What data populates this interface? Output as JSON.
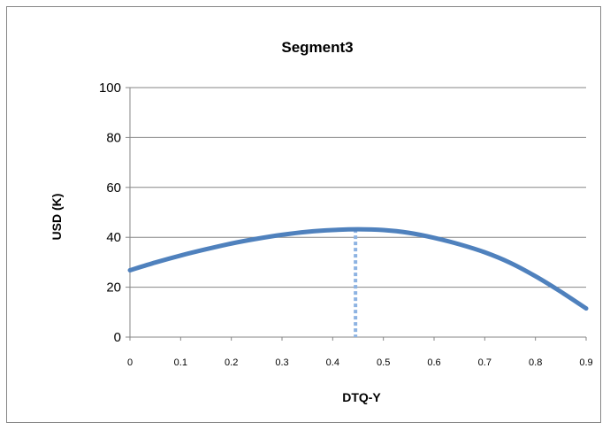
{
  "chart_data": {
    "type": "line",
    "title": "Segment3",
    "xlabel": "DTQ-Y",
    "ylabel": "USD (K)",
    "xlim": [
      0,
      0.9
    ],
    "ylim": [
      0,
      100
    ],
    "x_ticks": [
      "0",
      "0.1",
      "0.2",
      "0.3",
      "0.4",
      "0.5",
      "0.6",
      "0.7",
      "0.8",
      "0.9"
    ],
    "y_ticks": [
      "0",
      "20",
      "40",
      "60",
      "80",
      "100"
    ],
    "grid": true,
    "legend": false,
    "series": [
      {
        "color": "#4f81bd",
        "x": [
          0,
          0.05,
          0.1,
          0.15,
          0.2,
          0.25,
          0.3,
          0.35,
          0.4,
          0.45,
          0.5,
          0.55,
          0.6,
          0.65,
          0.7,
          0.75,
          0.8,
          0.85,
          0.9
        ],
        "y": [
          26.8,
          29.9,
          32.7,
          35.2,
          37.5,
          39.4,
          41.0,
          42.2,
          42.9,
          43.2,
          42.9,
          41.8,
          39.8,
          37.2,
          34.0,
          29.8,
          24.4,
          18.2,
          11.5
        ]
      }
    ],
    "reference_line": {
      "x": 0.445,
      "y": 43.2,
      "style": "dotted",
      "color": "#8db3e2"
    }
  }
}
